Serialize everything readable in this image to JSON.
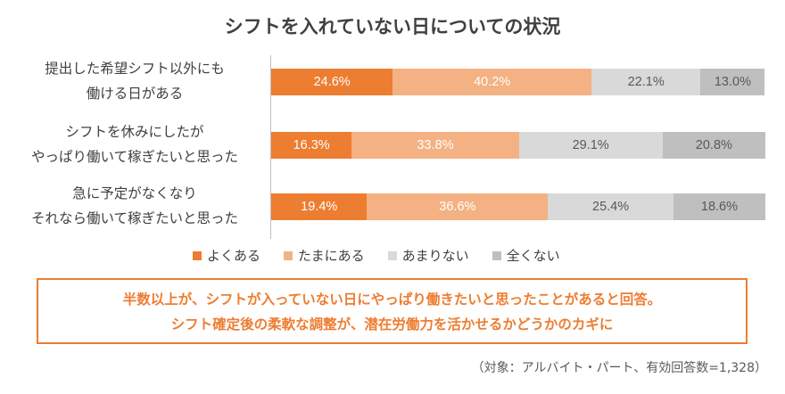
{
  "chart_data": {
    "type": "bar",
    "orientation": "horizontal-stacked-100",
    "title": "シフトを入れていない日についての状況",
    "categories": [
      [
        "提出した希望シフト以外にも",
        "働ける日がある"
      ],
      [
        "シフトを休みにしたが",
        "やっぱり働いて稼ぎたいと思った"
      ],
      [
        "急に予定がなくなり",
        "それなら働いて稼ぎたいと思った"
      ]
    ],
    "series": [
      {
        "name": "よくある",
        "color": "#ed7d31",
        "text_color": "#ffffff",
        "values": [
          24.6,
          16.3,
          19.4
        ]
      },
      {
        "name": "たまにある",
        "color": "#f4b183",
        "text_color": "#ffffff",
        "values": [
          40.2,
          33.8,
          36.6
        ]
      },
      {
        "name": "あまりない",
        "color": "#d9d9d9",
        "text_color": "#595959",
        "values": [
          22.1,
          29.1,
          25.4
        ]
      },
      {
        "name": "全くない",
        "color": "#bfbfbf",
        "text_color": "#595959",
        "values": [
          13.0,
          20.8,
          18.6
        ]
      }
    ],
    "value_suffix": "%",
    "xlim": [
      0,
      100
    ],
    "legend_position": "bottom"
  },
  "callout": {
    "line1": "半数以上が、シフトが入っていない日にやっぱり働きたいと思ったことがあると回答。",
    "line2": "シフト確定後の柔軟な調整が、潜在労働力を活かせるかどうかのカギに",
    "border_color": "#ed7d31"
  },
  "footnote": "（対象：アルバイト・パート、有効回答数=1,328）"
}
